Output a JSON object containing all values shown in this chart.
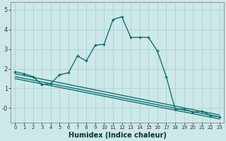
{
  "bg_color": "#cce8e8",
  "grid_color": "#aacccc",
  "line_color": "#006666",
  "xlabel": "Humidex (Indice chaleur)",
  "xlim": [
    -0.5,
    23.5
  ],
  "ylim": [
    -0.75,
    5.4
  ],
  "xticks": [
    0,
    1,
    2,
    3,
    4,
    5,
    6,
    7,
    8,
    9,
    10,
    11,
    12,
    13,
    14,
    15,
    16,
    17,
    18,
    19,
    20,
    21,
    22,
    23
  ],
  "yticks": [
    0,
    1,
    2,
    3,
    4,
    5
  ],
  "ytick_labels": [
    "-0",
    "1",
    "2",
    "3",
    "4",
    "5"
  ],
  "curve_x": [
    0,
    1,
    2,
    3,
    4,
    5,
    6,
    7,
    8,
    9,
    10,
    11,
    12,
    13,
    14,
    15,
    16,
    17,
    18,
    19,
    20,
    21,
    22,
    23
  ],
  "curve_y": [
    1.85,
    1.75,
    1.6,
    1.2,
    1.25,
    1.7,
    1.8,
    2.65,
    2.4,
    3.2,
    3.25,
    4.5,
    4.65,
    3.6,
    3.6,
    3.6,
    2.9,
    1.6,
    -0.05,
    -0.05,
    -0.2,
    -0.15,
    -0.38,
    -0.45
  ],
  "line1": {
    "x": [
      0,
      23
    ],
    "y": [
      1.75,
      -0.35
    ]
  },
  "line2": {
    "x": [
      0,
      23
    ],
    "y": [
      1.6,
      -0.45
    ]
  },
  "line3": {
    "x": [
      0,
      23
    ],
    "y": [
      1.5,
      -0.55
    ]
  }
}
